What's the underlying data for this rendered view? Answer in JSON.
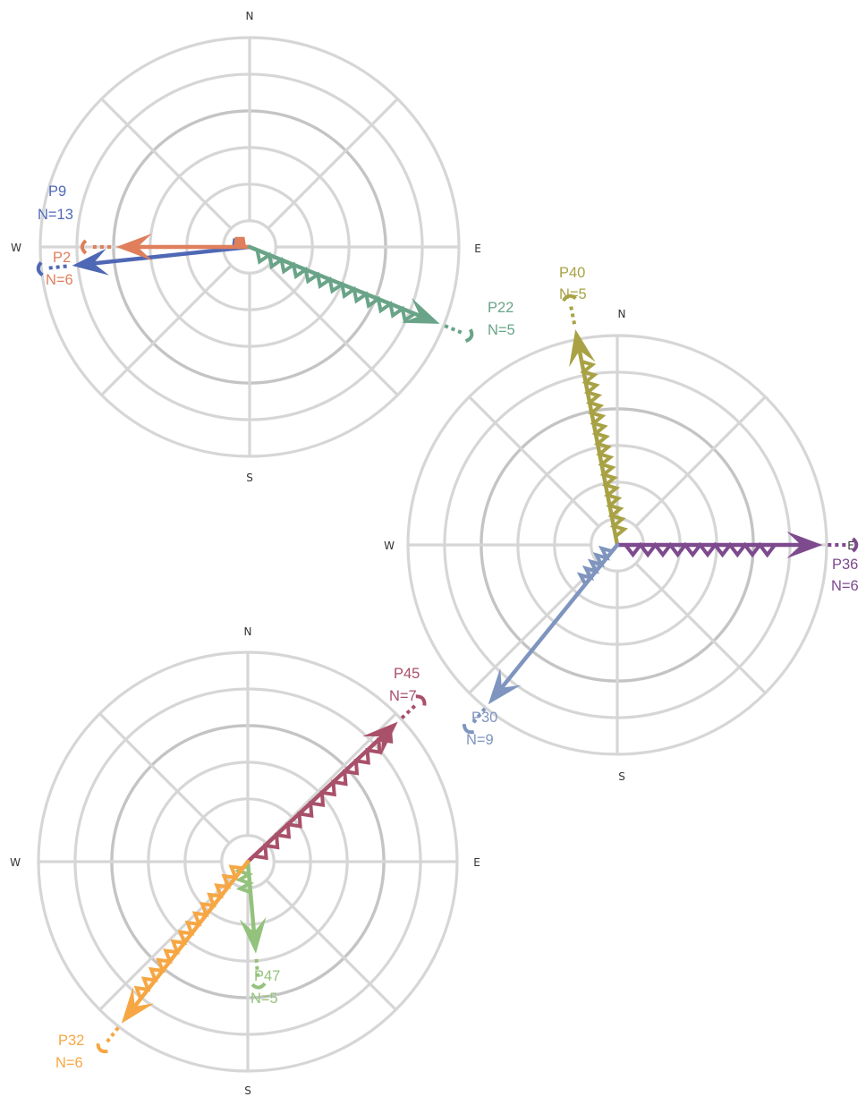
{
  "colors": {
    "P9": "#4f68b5",
    "P2": "#df7f5c",
    "P22": "#6aa488",
    "P40": "#a8a245",
    "P36": "#7e4a8e",
    "P30": "#7f95bf",
    "P45": "#a9506a",
    "P47": "#93c27c",
    "P32": "#f6a744"
  },
  "roses": [
    {
      "cardinals": {
        "n": "N",
        "e": "E",
        "s": "S",
        "w": "W"
      },
      "vectors": [
        {
          "id": "P9",
          "label": "P9",
          "count": "N=13",
          "heading": 264,
          "length": 0.87,
          "wiggles": 2,
          "wiggle_frac": 0.15
        },
        {
          "id": "P2",
          "label": "P2",
          "count": "N=6",
          "heading": 270,
          "length": 0.65,
          "wiggles": 3,
          "wiggle_frac": 0.14
        },
        {
          "id": "P22",
          "label": "P22",
          "count": "N=5",
          "heading": 112,
          "length": 1.0,
          "wiggles": 13,
          "wiggle_frac": 0.92
        }
      ]
    },
    {
      "cardinals": {
        "n": "N",
        "e": "E",
        "s": "S",
        "w": "W"
      },
      "vectors": [
        {
          "id": "P40",
          "label": "P40",
          "count": "N=5",
          "heading": 349,
          "length": 1.07,
          "wiggles": 17,
          "wiggle_frac": 0.9
        },
        {
          "id": "P36",
          "label": "P36",
          "count": "N=6",
          "heading": 90,
          "length": 1.0,
          "wiggles": 10,
          "wiggle_frac": 0.82
        },
        {
          "id": "P30",
          "label": "P30",
          "count": "N=9",
          "heading": 219,
          "length": 1.0,
          "wiggles": 5,
          "wiggle_frac": 0.3
        }
      ]
    },
    {
      "cardinals": {
        "n": "N",
        "e": "E",
        "s": "S",
        "w": "W"
      },
      "vectors": [
        {
          "id": "P45",
          "label": "P45",
          "count": "N=7",
          "heading": 47,
          "length": 1.0,
          "wiggles": 12,
          "wiggle_frac": 1.0
        },
        {
          "id": "P47",
          "label": "P47",
          "count": "N=5",
          "heading": 175,
          "length": 0.45,
          "wiggles": 3,
          "wiggle_frac": 0.45
        },
        {
          "id": "P32",
          "label": "P32",
          "count": "N=6",
          "heading": 218,
          "length": 1.0,
          "wiggles": 14,
          "wiggle_frac": 0.9
        }
      ]
    }
  ]
}
